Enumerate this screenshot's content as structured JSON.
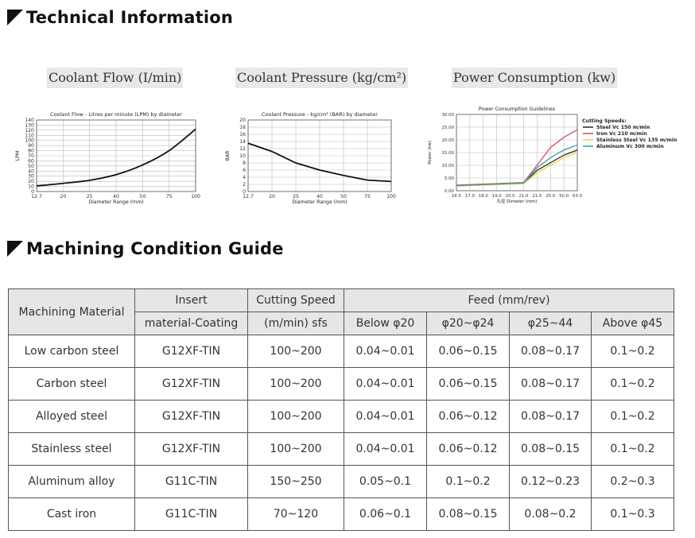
{
  "sections": {
    "technical_information": "Technical Information",
    "machining_condition_guide": "Machining Condition Guide"
  },
  "chart_headers": {
    "coolant_flow": "Coolant Flow (I/min)",
    "coolant_pressure": "Coolant Pressure (kg/cm²)",
    "power_consumption": "Power Consumption (kw)"
  },
  "chart_data": [
    {
      "type": "line",
      "title": "Coolant Flow - Litres per minute (LPM) by diameter",
      "xlabel": "Diameter Range (mm)",
      "ylabel": "LPM",
      "categories": [
        "12.7",
        "20",
        "25",
        "40",
        "50",
        "75",
        "100"
      ],
      "ylim": [
        0,
        140
      ],
      "yticks": [
        0,
        10,
        20,
        30,
        40,
        50,
        60,
        70,
        80,
        90,
        100,
        110,
        120,
        130,
        140
      ],
      "grid": true,
      "series": [
        {
          "values": [
            11,
            16,
            22,
            33,
            52,
            80,
            122
          ]
        }
      ]
    },
    {
      "type": "line",
      "title": "Coolant Pressure - kg/cm² (BAR) by diameter",
      "xlabel": "Diameter Range (mm)",
      "ylabel": "BAR",
      "categories": [
        "12.7",
        "20",
        "25",
        "40",
        "50",
        "75",
        "100"
      ],
      "ylim": [
        0,
        20
      ],
      "yticks": [
        0,
        2,
        4,
        6,
        8,
        10,
        12,
        14,
        16,
        18,
        20
      ],
      "grid": true,
      "series": [
        {
          "values": [
            13.5,
            11.2,
            8,
            6,
            4.5,
            3.2,
            2.8
          ]
        }
      ]
    },
    {
      "type": "line",
      "title": "Power Consumption Guidelines",
      "xlabel": "孔径 Dimeter (mm)",
      "ylabel": "Power (kw)",
      "categories": [
        "16.5",
        "17.0",
        "18.0",
        "19.0",
        "20.0",
        "21.0",
        "21.5",
        "25.0",
        "50.0",
        "63.0"
      ],
      "ylim": [
        0,
        30
      ],
      "yticks": [
        "0.00",
        "5.00",
        "10.00",
        "15.00",
        "20.00",
        "25.00",
        "30.00"
      ],
      "grid": true,
      "legend_title": "Cutting Speeds:",
      "legend_position": "right",
      "series": [
        {
          "name": "Steel Vc 150 m/min",
          "color": "#333333",
          "values": [
            2,
            2.2,
            2.4,
            2.6,
            2.8,
            3,
            8,
            11,
            14,
            16
          ]
        },
        {
          "name": "Iron Vc 210 m/min",
          "color": "#d9506a",
          "values": [
            2.2,
            2.4,
            2.6,
            2.8,
            3,
            3.2,
            10,
            17,
            21,
            24
          ]
        },
        {
          "name": "Stainless Steel Vc 135 m/min",
          "color": "#e8d84a",
          "values": [
            1.8,
            2,
            2.2,
            2.4,
            2.6,
            2.8,
            7,
            10,
            13,
            15
          ]
        },
        {
          "name": "Aluminum Vc 300 m/min",
          "color": "#3aa6a6",
          "values": [
            2,
            2.2,
            2.4,
            2.6,
            2.8,
            3,
            9,
            13,
            16,
            18
          ]
        }
      ]
    }
  ],
  "table": {
    "headers": {
      "material": "Machining Material",
      "insert_1": "Insert",
      "insert_2": "material-Coating",
      "speed_1": "Cutting Speed",
      "speed_2": "(m/min) sfs",
      "feed": "Feed (mm/rev)",
      "feed_cols": [
        "Below φ20",
        "φ20~φ24",
        "φ25~44",
        "Above φ45"
      ]
    },
    "rows": [
      [
        "Low carbon steel",
        "G12XF-TIN",
        "100~200",
        "0.04~0.01",
        "0.06~0.15",
        "0.08~0.17",
        "0.1~0.2"
      ],
      [
        "Carbon steel",
        "G12XF-TIN",
        "100~200",
        "0.04~0.01",
        "0.06~0.15",
        "0.08~0.17",
        "0.1~0.2"
      ],
      [
        "Alloyed steel",
        "G12XF-TIN",
        "100~200",
        "0.04~0.01",
        "0.06~0.12",
        "0.08~0.17",
        "0.1~0.2"
      ],
      [
        "Stainless steel",
        "G12XF-TIN",
        "100~200",
        "0.04~0.01",
        "0.06~0.12",
        "0.08~0.15",
        "0.1~0.2"
      ],
      [
        "Aluminum alloy",
        "G11C-TIN",
        "150~250",
        "0.05~0.1",
        "0.1~0.2",
        "0.12~0.23",
        "0.2~0.3"
      ],
      [
        "Cast iron",
        "G11C-TIN",
        "70~120",
        "0.06~0.1",
        "0.08~0.15",
        "0.08~0.2",
        "0.1~0.3"
      ]
    ]
  }
}
